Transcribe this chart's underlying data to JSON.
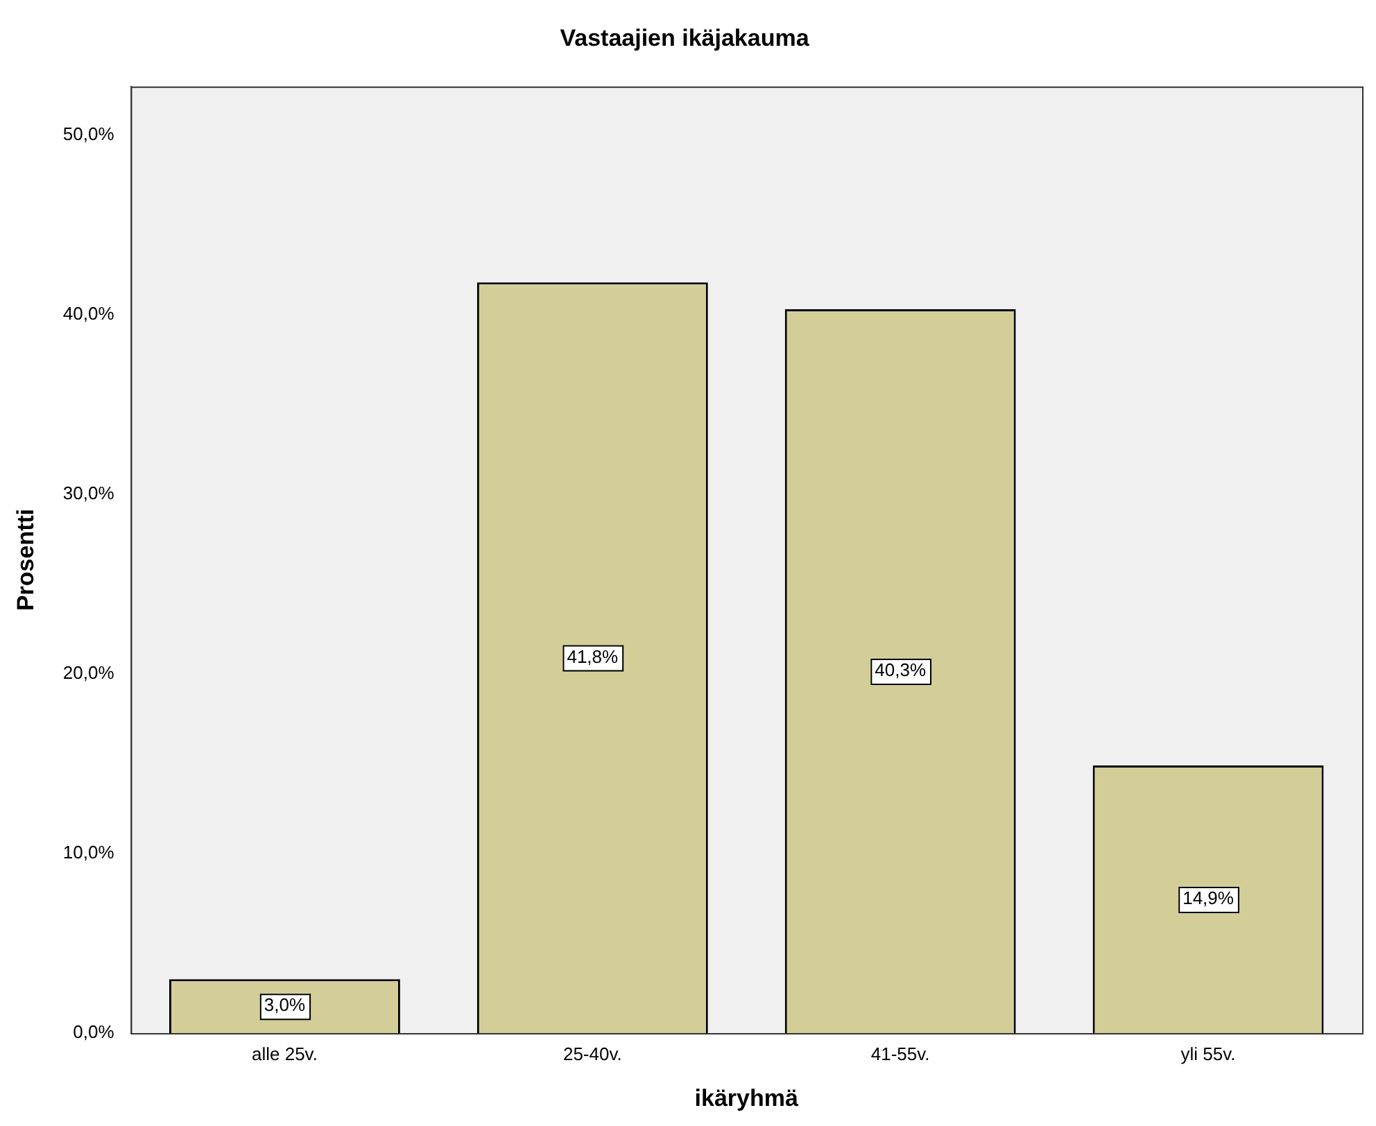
{
  "chart_data": {
    "type": "bar",
    "title": "Vastaajien ikäjakauma",
    "xlabel": "ikäryhmä",
    "ylabel": "Prosentti",
    "categories": [
      "alle 25v.",
      "25-40v.",
      "41-55v.",
      "yli 55v."
    ],
    "values": [
      3.0,
      41.8,
      40.3,
      14.9
    ],
    "color": "#d3ce98",
    "value_labels": [
      "3,0%",
      "41,8%",
      "40,3%",
      "14,9%"
    ],
    "ylim": [
      0,
      52.7
    ],
    "yticks": [
      {
        "value": 0,
        "label": "0,0%"
      },
      {
        "value": 10,
        "label": "10,0%"
      },
      {
        "value": 20,
        "label": "20,0%"
      },
      {
        "value": 30,
        "label": "30,0%"
      },
      {
        "value": 40,
        "label": "40,0%"
      },
      {
        "value": 50,
        "label": "50,0%"
      }
    ],
    "grid": false,
    "legend": false
  }
}
